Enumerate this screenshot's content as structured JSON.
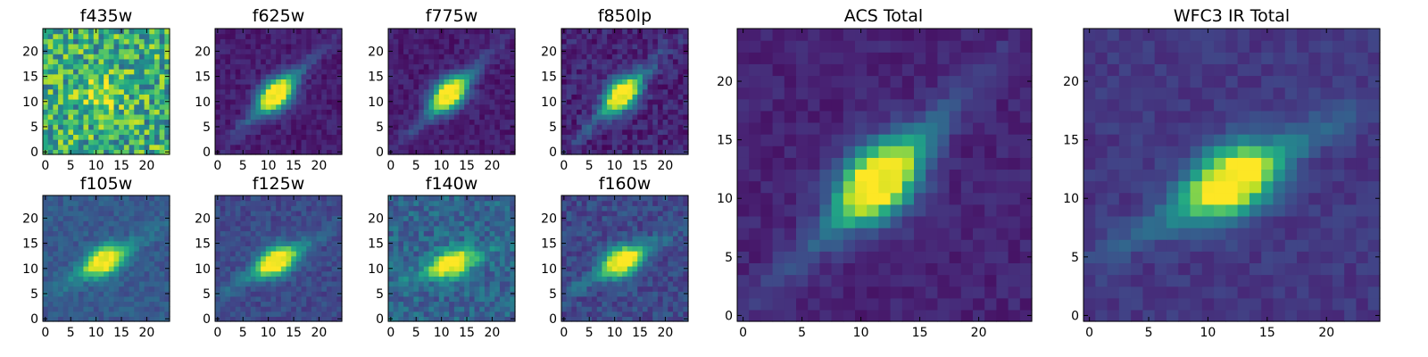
{
  "figure": {
    "small_panels": [
      {
        "title": "f435w",
        "chart_data": {
          "type": "heatmap",
          "title": "f435w",
          "grid_size": 25,
          "xlim": [
            -0.5,
            24.5
          ],
          "ylim": [
            -0.5,
            24.5
          ],
          "x_ticks": [
            "0",
            "5",
            "10",
            "15",
            "20"
          ],
          "y_ticks": [
            "0",
            "5",
            "10",
            "15",
            "20"
          ],
          "colormap": "viridis",
          "peak": [
            11.5,
            11.5
          ],
          "background_level": 0.62,
          "noise": 0.3,
          "elongation_angle_deg": 0
        }
      },
      {
        "title": "f625w",
        "chart_data": {
          "type": "heatmap",
          "title": "f625w",
          "grid_size": 25,
          "xlim": [
            -0.5,
            24.5
          ],
          "ylim": [
            -0.5,
            24.5
          ],
          "x_ticks": [
            "0",
            "5",
            "10",
            "15",
            "20"
          ],
          "y_ticks": [
            "0",
            "5",
            "10",
            "15",
            "20"
          ],
          "colormap": "viridis",
          "peak": [
            11.5,
            11.5
          ],
          "background_level": 0.08,
          "noise": 0.06,
          "elongation_angle_deg": 45
        }
      },
      {
        "title": "f775w",
        "chart_data": {
          "type": "heatmap",
          "title": "f775w",
          "grid_size": 25,
          "xlim": [
            -0.5,
            24.5
          ],
          "ylim": [
            -0.5,
            24.5
          ],
          "x_ticks": [
            "0",
            "5",
            "10",
            "15",
            "20"
          ],
          "y_ticks": [
            "0",
            "5",
            "10",
            "15",
            "20"
          ],
          "colormap": "viridis",
          "peak": [
            11.5,
            11.5
          ],
          "background_level": 0.08,
          "noise": 0.06,
          "elongation_angle_deg": 45
        }
      },
      {
        "title": "f850lp",
        "chart_data": {
          "type": "heatmap",
          "title": "f850lp",
          "grid_size": 25,
          "xlim": [
            -0.5,
            24.5
          ],
          "ylim": [
            -0.5,
            24.5
          ],
          "x_ticks": [
            "0",
            "5",
            "10",
            "15",
            "20"
          ],
          "y_ticks": [
            "0",
            "5",
            "10",
            "15",
            "20"
          ],
          "colormap": "viridis",
          "peak": [
            11.5,
            11.5
          ],
          "background_level": 0.1,
          "noise": 0.09,
          "elongation_angle_deg": 45
        }
      },
      {
        "title": "f105w",
        "chart_data": {
          "type": "heatmap",
          "title": "f105w",
          "grid_size": 25,
          "xlim": [
            -0.5,
            24.5
          ],
          "ylim": [
            -0.5,
            24.5
          ],
          "x_ticks": [
            "0",
            "5",
            "10",
            "15",
            "20"
          ],
          "y_ticks": [
            "0",
            "5",
            "10",
            "15",
            "20"
          ],
          "colormap": "viridis",
          "peak": [
            11.5,
            11.5
          ],
          "background_level": 0.28,
          "noise": 0.07,
          "elongation_angle_deg": 30
        }
      },
      {
        "title": "f125w",
        "chart_data": {
          "type": "heatmap",
          "title": "f125w",
          "grid_size": 25,
          "xlim": [
            -0.5,
            24.5
          ],
          "ylim": [
            -0.5,
            24.5
          ],
          "x_ticks": [
            "0",
            "5",
            "10",
            "15",
            "20"
          ],
          "y_ticks": [
            "0",
            "5",
            "10",
            "15",
            "20"
          ],
          "colormap": "viridis",
          "peak": [
            11.5,
            11.5
          ],
          "background_level": 0.22,
          "noise": 0.07,
          "elongation_angle_deg": 30
        }
      },
      {
        "title": "f140w",
        "chart_data": {
          "type": "heatmap",
          "title": "f140w",
          "grid_size": 25,
          "xlim": [
            -0.5,
            24.5
          ],
          "ylim": [
            -0.5,
            24.5
          ],
          "x_ticks": [
            "0",
            "5",
            "10",
            "15",
            "20"
          ],
          "y_ticks": [
            "0",
            "5",
            "10",
            "15",
            "20"
          ],
          "colormap": "viridis",
          "peak": [
            12,
            11
          ],
          "background_level": 0.32,
          "noise": 0.12,
          "elongation_angle_deg": 20
        }
      },
      {
        "title": "f160w",
        "chart_data": {
          "type": "heatmap",
          "title": "f160w",
          "grid_size": 25,
          "xlim": [
            -0.5,
            24.5
          ],
          "ylim": [
            -0.5,
            24.5
          ],
          "x_ticks": [
            "0",
            "5",
            "10",
            "15",
            "20"
          ],
          "y_ticks": [
            "0",
            "5",
            "10",
            "15",
            "20"
          ],
          "colormap": "viridis",
          "peak": [
            11.5,
            11.5
          ],
          "background_level": 0.22,
          "noise": 0.09,
          "elongation_angle_deg": 30
        }
      }
    ],
    "large_panels": [
      {
        "title": "ACS Total",
        "chart_data": {
          "type": "heatmap",
          "title": "ACS Total",
          "grid_size": 25,
          "xlim": [
            -0.5,
            24.5
          ],
          "ylim": [
            -0.5,
            24.5
          ],
          "x_ticks": [
            "0",
            "5",
            "10",
            "15",
            "20"
          ],
          "y_ticks": [
            "0",
            "5",
            "10",
            "15",
            "20"
          ],
          "colormap": "viridis",
          "peak": [
            11.5,
            11.5
          ],
          "background_level": 0.1,
          "noise": 0.05,
          "elongation_angle_deg": 45
        }
      },
      {
        "title": "WFC3 IR Total",
        "chart_data": {
          "type": "heatmap",
          "title": "WFC3 IR Total",
          "grid_size": 25,
          "xlim": [
            -0.5,
            24.5
          ],
          "ylim": [
            -0.5,
            24.5
          ],
          "x_ticks": [
            "0",
            "5",
            "10",
            "15",
            "20"
          ],
          "y_ticks": [
            "0",
            "5",
            "10",
            "15",
            "20"
          ],
          "colormap": "viridis",
          "peak": [
            12,
            11.5
          ],
          "background_level": 0.16,
          "noise": 0.05,
          "elongation_angle_deg": 30
        }
      }
    ]
  }
}
